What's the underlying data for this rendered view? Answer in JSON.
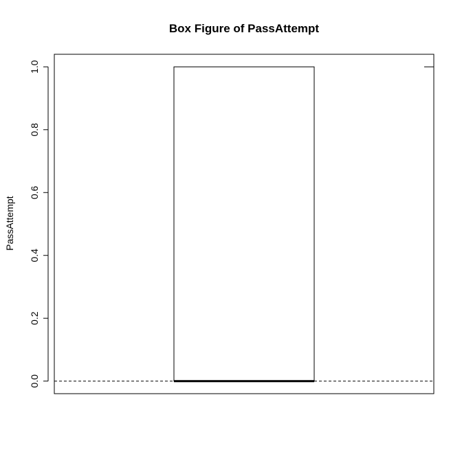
{
  "chart_data": {
    "type": "box",
    "title": "Box Figure of PassAttempt",
    "xlabel": "",
    "ylabel": "PassAttempt",
    "ylim": [
      -0.04,
      1.04
    ],
    "yticks": [
      0.0,
      0.2,
      0.4,
      0.6,
      0.8,
      1.0
    ],
    "ytick_labels": [
      "0.0",
      "0.2",
      "0.4",
      "0.6",
      "0.8",
      "1.0"
    ],
    "grid": false,
    "boxes": [
      {
        "min": 0,
        "q1": 0,
        "median": 0,
        "q3": 1,
        "max": 1
      }
    ]
  }
}
